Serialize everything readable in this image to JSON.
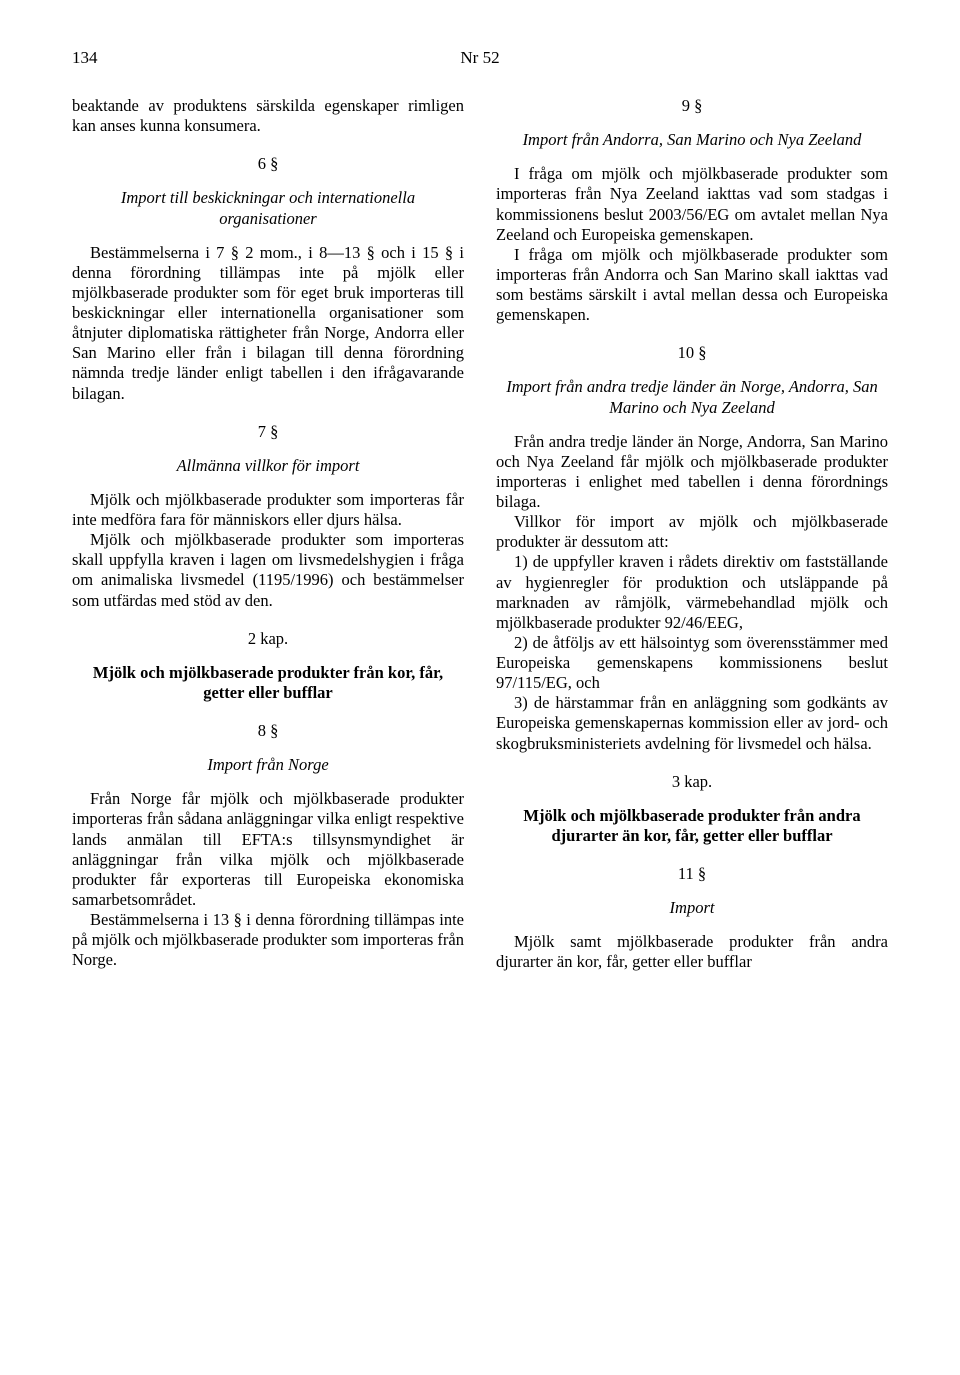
{
  "header": {
    "page_number": "134",
    "document_number": "Nr 52"
  },
  "left_column": {
    "p1": "beaktande av produktens särskilda egenskaper rimligen kan anses kunna konsumera.",
    "s6_num": "6 §",
    "s6_title": "Import till beskickningar och internationella organisationer",
    "s6_p1": "Bestämmelserna i 7 § 2 mom., i 8—13 § och i 15 § i denna förordning tillämpas inte på mjölk eller mjölkbaserade produkter som för eget bruk importeras till beskickningar eller internationella organisationer som åtnjuter diplomatiska rättigheter från Norge, Andorra eller San Marino eller från i bilagan till denna förordning nämnda tredje länder enligt tabellen i den ifrågavarande bilagan.",
    "s7_num": "7 §",
    "s7_title": "Allmänna villkor för import",
    "s7_p1": "Mjölk och mjölkbaserade produkter som importeras får inte medföra fara för människors eller djurs hälsa.",
    "s7_p2": "Mjölk och mjölkbaserade produkter som importeras skall uppfylla kraven i lagen om livsmedelshygien i fråga om animaliska livsmedel (1195/1996) och bestämmelser som utfärdas med stöd av den.",
    "ch2_num": "2 kap.",
    "ch2_title": "Mjölk och mjölkbaserade produkter från kor, får, getter eller bufflar",
    "s8_num": "8 §",
    "s8_title": "Import från Norge",
    "s8_p1": "Från Norge får mjölk och mjölkbaserade produkter importeras från sådana anläggningar vilka enligt respektive lands anmälan till EFTA:s tillsynsmyndighet är anläggningar från vilka mjölk och mjölkbaserade produkter får exporteras till Europeiska ekonomiska samarbetsområdet.",
    "s8_p2": "Bestämmelserna i 13 § i denna förordning tillämpas inte på mjölk och mjölkbaserade produkter som importeras från Norge."
  },
  "right_column": {
    "s9_num": "9 §",
    "s9_title": "Import från Andorra, San Marino och Nya Zeeland",
    "s9_p1": "I fråga om mjölk och mjölkbaserade produkter som importeras från Nya Zeeland iakttas vad som stadgas i kommissionens beslut 2003/56/EG om avtalet mellan Nya Zeeland och Europeiska gemenskapen.",
    "s9_p2": "I fråga om mjölk och mjölkbaserade produkter som importeras från Andorra och San Marino skall iakttas vad som bestäms särskilt i avtal mellan dessa och Europeiska gemenskapen.",
    "s10_num": "10 §",
    "s10_title": "Import från andra tredje länder än Norge, Andorra, San Marino och Nya Zeeland",
    "s10_p1": "Från andra tredje länder än Norge, Andorra, San Marino och Nya Zeeland får mjölk och mjölkbaserade produkter importeras i enlighet med tabellen i denna förordnings bilaga.",
    "s10_p2": "Villkor för import av mjölk och mjölkbaserade produkter är dessutom att:",
    "s10_p3": "1) de uppfyller kraven i rådets direktiv om fastställande av hygienregler för produktion och utsläppande på marknaden av råmjölk, värmebehandlad mjölk och mjölkbaserade produkter 92/46/EEG,",
    "s10_p4": "2) de åtföljs av ett hälsointyg som överensstämmer med Europeiska gemenskapens kommissionens beslut 97/115/EG, och",
    "s10_p5": "3) de härstammar från en anläggning som godkänts av Europeiska gemenskapernas kommission eller av jord- och skogbruksministeriets avdelning för livsmedel och hälsa.",
    "ch3_num": "3 kap.",
    "ch3_title": "Mjölk och mjölkbaserade produkter från andra djurarter än kor, får, getter eller bufflar",
    "s11_num": "11 §",
    "s11_title": "Import",
    "s11_p1": "Mjölk samt mjölkbaserade produkter från andra djurarter än kor, får, getter eller bufflar"
  }
}
